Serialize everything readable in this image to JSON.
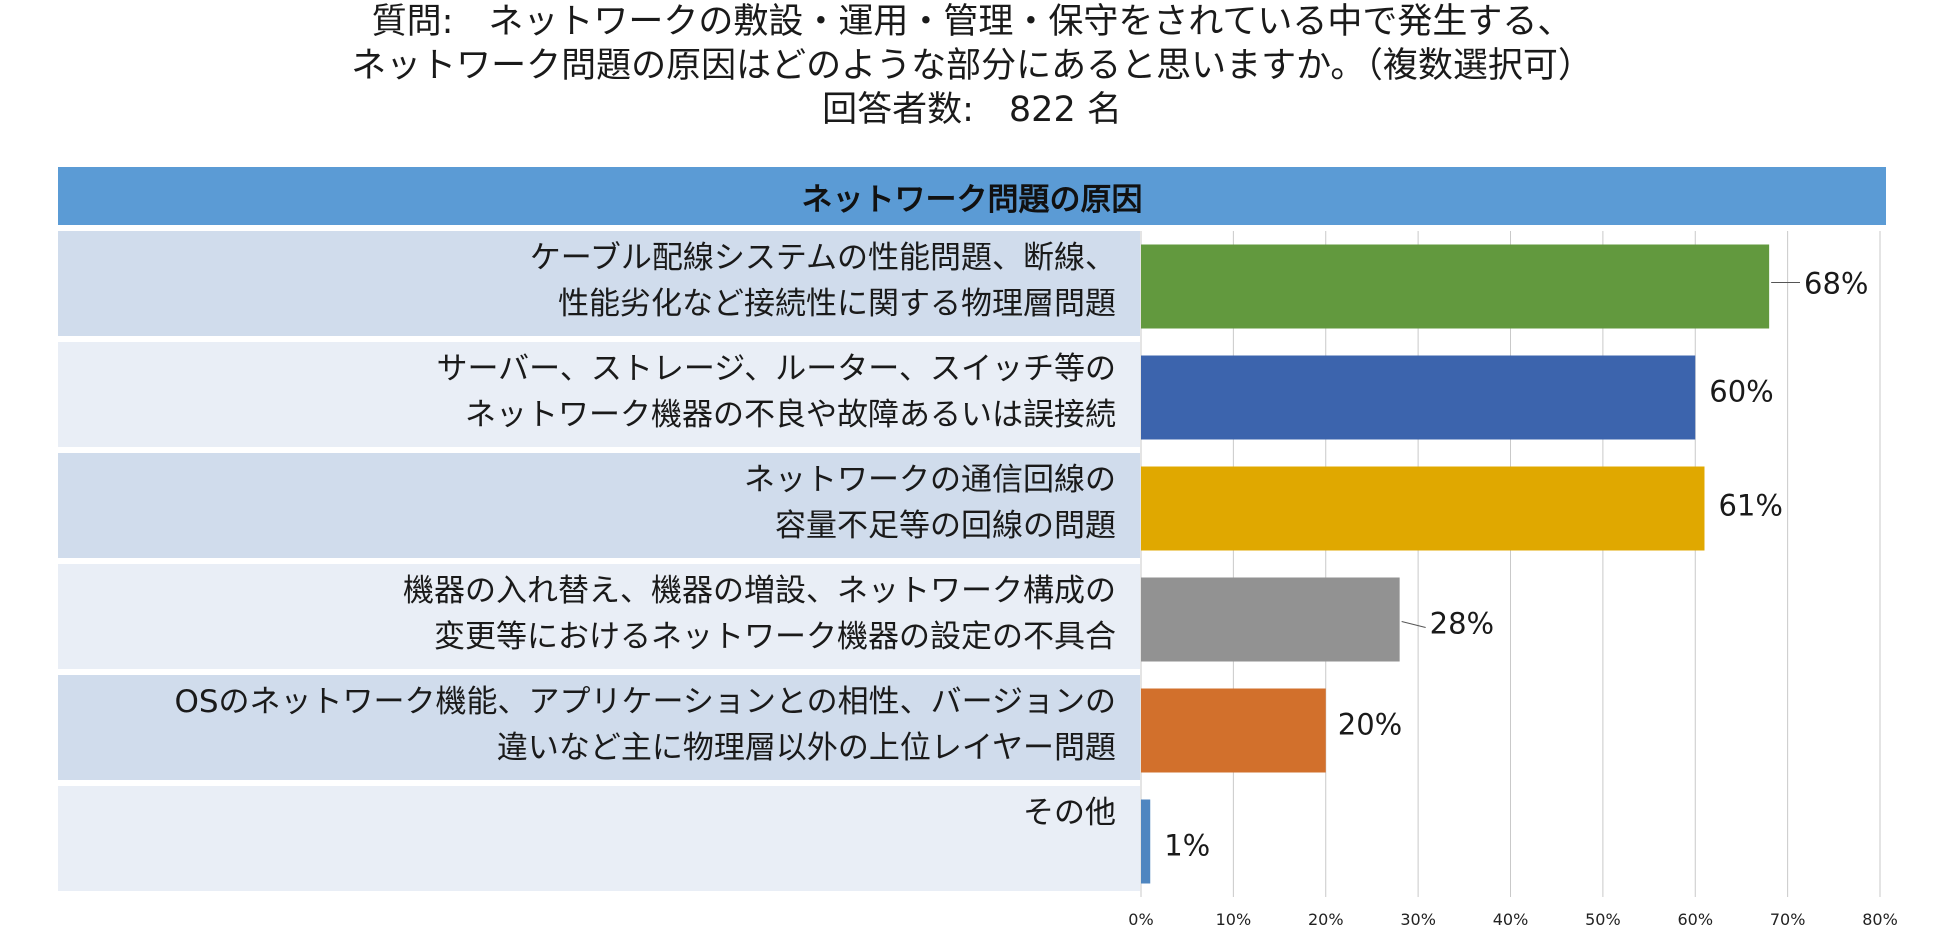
{
  "title": {
    "line1": "質問:　ネットワークの敷設・運用・管理・保守をされている中で発生する、",
    "line2": "ネットワーク問題の原因はどのような部分にあると思いますか。（複数選択可）",
    "line3": "回答者数:　822 名"
  },
  "chart_data": {
    "type": "bar",
    "orientation": "horizontal",
    "title": "ネットワーク問題の原因",
    "categories": [
      [
        "ケーブル配線システムの性能問題、断線、",
        "性能劣化など接続性に関する物理層問題"
      ],
      [
        "サーバー、ストレージ、ルーター、スイッチ等の",
        "ネットワーク機器の不良や故障あるいは誤接続"
      ],
      [
        "ネットワークの通信回線の",
        "容量不足等の回線の問題"
      ],
      [
        "機器の入れ替え、機器の増設、ネットワーク構成の",
        "変更等におけるネットワーク機器の設定の不具合"
      ],
      [
        "OSのネットワーク機能、アプリケーションとの相性、バージョンの",
        "違いなど主に物理層以外の上位レイヤー問題"
      ],
      [
        "その他"
      ]
    ],
    "values": [
      68,
      60,
      61,
      28,
      20,
      1
    ],
    "data_labels": [
      "68%",
      "60%",
      "61%",
      "28%",
      "20%",
      "1%"
    ],
    "colors": [
      "#62993e",
      "#3c64ad",
      "#e0a800",
      "#929292",
      "#d2702c",
      "#4f86c0"
    ],
    "xlim": [
      0,
      80
    ],
    "x_ticks": [
      "0%",
      "10%",
      "20%",
      "30%",
      "40%",
      "50%",
      "60%",
      "70%",
      "80%"
    ],
    "grid": true
  }
}
